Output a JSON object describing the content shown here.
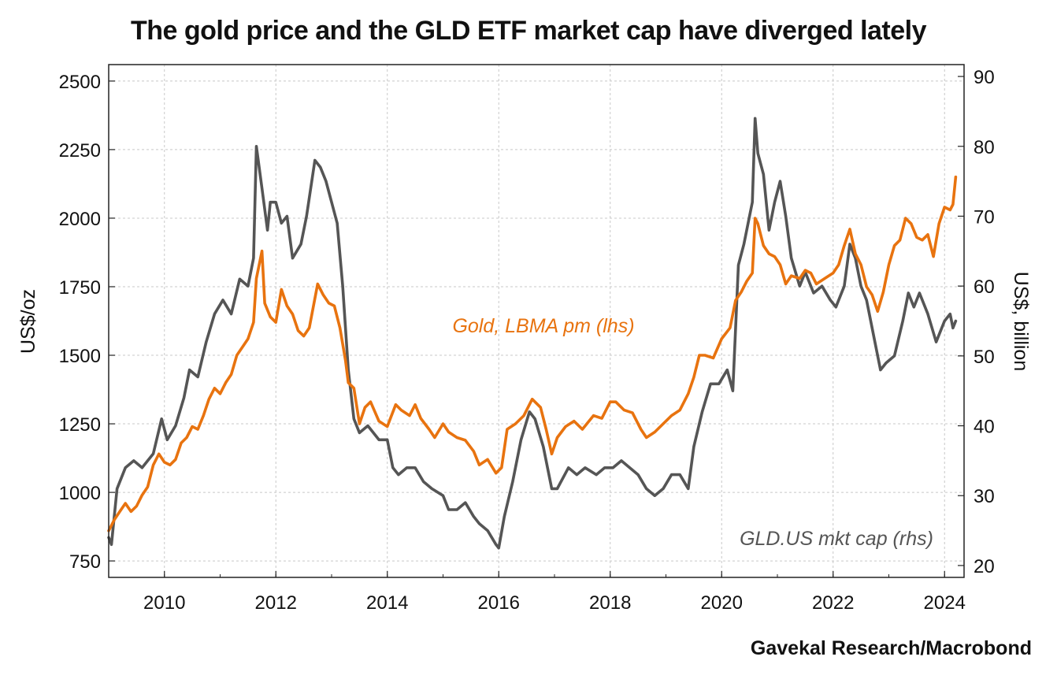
{
  "chart_data": {
    "type": "line",
    "title": "The gold price and the GLD ETF market cap have diverged lately",
    "source": "Gavekal Research/Macrobond",
    "xlabel": "",
    "xlim": [
      2009.0,
      2024.35
    ],
    "x_ticks": [
      "2010",
      "2012",
      "2014",
      "2016",
      "2018",
      "2020",
      "2022",
      "2024"
    ],
    "y_left": {
      "label": "US$/oz",
      "ylim": [
        690,
        2560
      ],
      "ticks": [
        "750",
        "1000",
        "1250",
        "1500",
        "1750",
        "2000",
        "2250",
        "2500"
      ]
    },
    "y_right": {
      "label": "US$, billion",
      "ylim": [
        18.3,
        91.7
      ],
      "ticks": [
        "20",
        "30",
        "40",
        "50",
        "60",
        "70",
        "80",
        "90"
      ]
    },
    "colors": {
      "gold": "#e8730f",
      "gld": "#555555",
      "grid": "#c8c8c8",
      "axis": "#222222"
    },
    "series": [
      {
        "name": "Gold, LBMA pm (lhs)",
        "axis": "left",
        "label_text": "Gold, LBMA pm (lhs)",
        "x": [
          2009.0,
          2009.1,
          2009.2,
          2009.3,
          2009.4,
          2009.5,
          2009.6,
          2009.7,
          2009.8,
          2009.9,
          2010.0,
          2010.1,
          2010.2,
          2010.3,
          2010.4,
          2010.5,
          2010.6,
          2010.7,
          2010.8,
          2010.9,
          2011.0,
          2011.1,
          2011.2,
          2011.3,
          2011.4,
          2011.5,
          2011.6,
          2011.65,
          2011.75,
          2011.8,
          2011.9,
          2012.0,
          2012.1,
          2012.2,
          2012.3,
          2012.4,
          2012.5,
          2012.6,
          2012.75,
          2012.85,
          2012.95,
          2013.05,
          2013.15,
          2013.25,
          2013.3,
          2013.4,
          2013.5,
          2013.6,
          2013.7,
          2013.85,
          2014.0,
          2014.15,
          2014.25,
          2014.4,
          2014.5,
          2014.6,
          2014.75,
          2014.85,
          2015.0,
          2015.1,
          2015.25,
          2015.4,
          2015.55,
          2015.65,
          2015.8,
          2015.95,
          2016.05,
          2016.15,
          2016.3,
          2016.45,
          2016.6,
          2016.75,
          2016.85,
          2016.95,
          2017.05,
          2017.2,
          2017.35,
          2017.5,
          2017.7,
          2017.85,
          2018.0,
          2018.1,
          2018.25,
          2018.4,
          2018.55,
          2018.65,
          2018.8,
          2018.95,
          2019.1,
          2019.25,
          2019.4,
          2019.5,
          2019.6,
          2019.7,
          2019.85,
          2020.0,
          2020.15,
          2020.25,
          2020.35,
          2020.45,
          2020.55,
          2020.6,
          2020.65,
          2020.75,
          2020.85,
          2020.95,
          2021.05,
          2021.15,
          2021.25,
          2021.4,
          2021.5,
          2021.6,
          2021.7,
          2021.85,
          2022.0,
          2022.1,
          2022.2,
          2022.3,
          2022.4,
          2022.5,
          2022.6,
          2022.7,
          2022.8,
          2022.9,
          2023.0,
          2023.1,
          2023.2,
          2023.3,
          2023.4,
          2023.5,
          2023.6,
          2023.7,
          2023.8,
          2023.9,
          2024.0,
          2024.1,
          2024.15,
          2024.2
        ],
        "values": [
          860,
          900,
          930,
          960,
          930,
          950,
          990,
          1020,
          1100,
          1140,
          1110,
          1100,
          1120,
          1180,
          1200,
          1240,
          1230,
          1280,
          1340,
          1380,
          1360,
          1400,
          1430,
          1500,
          1530,
          1560,
          1620,
          1780,
          1880,
          1690,
          1640,
          1620,
          1740,
          1680,
          1650,
          1590,
          1570,
          1600,
          1760,
          1720,
          1690,
          1680,
          1600,
          1480,
          1400,
          1380,
          1250,
          1310,
          1330,
          1260,
          1240,
          1320,
          1300,
          1280,
          1320,
          1270,
          1230,
          1200,
          1250,
          1220,
          1200,
          1190,
          1150,
          1100,
          1120,
          1070,
          1090,
          1230,
          1250,
          1280,
          1340,
          1310,
          1230,
          1140,
          1200,
          1240,
          1260,
          1230,
          1280,
          1270,
          1330,
          1330,
          1300,
          1290,
          1230,
          1200,
          1220,
          1250,
          1280,
          1300,
          1360,
          1420,
          1500,
          1500,
          1490,
          1560,
          1600,
          1700,
          1730,
          1770,
          1800,
          2000,
          1980,
          1900,
          1870,
          1860,
          1830,
          1760,
          1790,
          1780,
          1810,
          1800,
          1760,
          1780,
          1800,
          1830,
          1900,
          1960,
          1870,
          1830,
          1750,
          1720,
          1660,
          1730,
          1830,
          1900,
          1920,
          2000,
          1980,
          1930,
          1920,
          1940,
          1860,
          1980,
          2040,
          2030,
          2050,
          2150
        ]
      },
      {
        "name": "GLD.US mkt cap (rhs)",
        "axis": "right",
        "label_text": "GLD.US mkt cap (rhs)",
        "x": [
          2009.0,
          2009.05,
          2009.15,
          2009.3,
          2009.45,
          2009.6,
          2009.8,
          2009.95,
          2010.05,
          2010.2,
          2010.35,
          2010.45,
          2010.6,
          2010.75,
          2010.9,
          2011.05,
          2011.2,
          2011.35,
          2011.5,
          2011.6,
          2011.65,
          2011.75,
          2011.85,
          2011.9,
          2012.0,
          2012.1,
          2012.2,
          2012.3,
          2012.45,
          2012.55,
          2012.7,
          2012.8,
          2012.9,
          2013.0,
          2013.1,
          2013.2,
          2013.3,
          2013.4,
          2013.5,
          2013.65,
          2013.85,
          2014.0,
          2014.1,
          2014.2,
          2014.35,
          2014.5,
          2014.65,
          2014.8,
          2015.0,
          2015.1,
          2015.25,
          2015.4,
          2015.55,
          2015.65,
          2015.8,
          2015.95,
          2016.0,
          2016.1,
          2016.25,
          2016.4,
          2016.55,
          2016.65,
          2016.8,
          2016.95,
          2017.05,
          2017.25,
          2017.4,
          2017.55,
          2017.75,
          2017.9,
          2018.05,
          2018.2,
          2018.35,
          2018.5,
          2018.65,
          2018.8,
          2018.95,
          2019.1,
          2019.25,
          2019.4,
          2019.5,
          2019.65,
          2019.8,
          2019.95,
          2020.1,
          2020.2,
          2020.3,
          2020.4,
          2020.5,
          2020.55,
          2020.6,
          2020.65,
          2020.75,
          2020.85,
          2020.95,
          2021.05,
          2021.15,
          2021.25,
          2021.4,
          2021.5,
          2021.65,
          2021.8,
          2021.95,
          2022.05,
          2022.2,
          2022.3,
          2022.4,
          2022.5,
          2022.6,
          2022.75,
          2022.85,
          2022.95,
          2023.1,
          2023.25,
          2023.35,
          2023.45,
          2023.55,
          2023.7,
          2023.85,
          2024.0,
          2024.1,
          2024.15,
          2024.2
        ],
        "values": [
          24,
          23,
          31,
          34,
          35,
          34,
          36,
          41,
          38,
          40,
          44,
          48,
          47,
          52,
          56,
          58,
          56,
          61,
          60,
          64,
          80,
          74,
          68,
          72,
          72,
          69,
          70,
          64,
          66,
          70,
          78,
          77,
          75,
          72,
          69,
          60,
          48,
          41,
          39,
          40,
          38,
          38,
          34,
          33,
          34,
          34,
          32,
          31,
          30,
          28,
          28,
          29,
          27,
          26,
          25,
          23,
          22.5,
          27,
          32,
          38,
          42,
          41,
          37,
          31,
          31,
          34,
          33,
          34,
          33,
          34,
          34,
          35,
          34,
          33,
          31,
          30,
          31,
          33,
          33,
          31,
          37,
          42,
          46,
          46,
          48,
          45,
          63,
          66,
          70,
          72,
          84,
          79,
          76,
          68,
          72,
          75,
          70,
          64,
          60,
          62,
          59,
          60,
          58,
          57,
          60,
          66,
          64,
          60,
          58,
          52,
          48,
          49,
          50,
          55,
          59,
          57,
          59,
          56,
          52,
          55,
          56,
          54,
          55
        ]
      }
    ]
  }
}
